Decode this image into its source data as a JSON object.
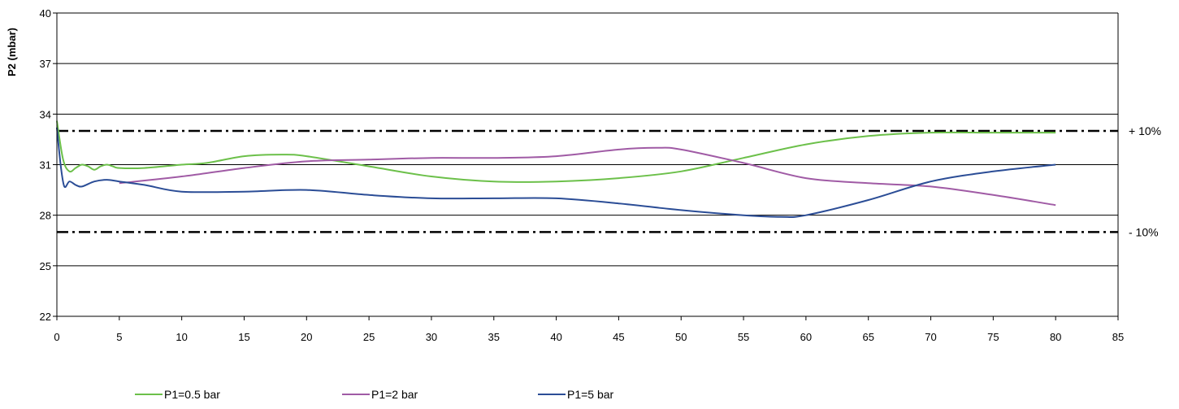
{
  "chart_data": {
    "type": "line",
    "title": "",
    "xlabel": "",
    "ylabel": "P2 (mbar)",
    "xlim": [
      0,
      85
    ],
    "ylim": [
      22,
      40
    ],
    "x_ticks": [
      "0",
      "5",
      "10",
      "15",
      "20",
      "25",
      "30",
      "35",
      "40",
      "45",
      "50",
      "55",
      "60",
      "65",
      "70",
      "75",
      "80",
      "85"
    ],
    "y_ticks": [
      "22",
      "25",
      "28",
      "31",
      "34",
      "37",
      "40"
    ],
    "grid": "horizontal",
    "legend_position": "bottom",
    "reference_lines": [
      {
        "label": "+ 10%",
        "y": 33,
        "style": "dash-dot",
        "color": "#000000"
      },
      {
        "label": "- 10%",
        "y": 27,
        "style": "dash-dot",
        "color": "#000000"
      }
    ],
    "series": [
      {
        "name": "P1=0.5 bar",
        "color": "#6cc04a",
        "x": [
          0,
          0.5,
          1,
          1.5,
          2,
          2.5,
          3,
          3.5,
          4,
          4.5,
          5,
          7,
          10,
          12,
          15,
          18,
          20,
          25,
          30,
          35,
          40,
          45,
          50,
          55,
          60,
          65,
          70,
          75,
          80
        ],
        "y": [
          33.6,
          31.3,
          30.6,
          30.8,
          31.0,
          30.9,
          30.7,
          30.9,
          31.0,
          30.9,
          30.8,
          30.8,
          31.0,
          31.1,
          31.5,
          31.6,
          31.5,
          30.9,
          30.3,
          30.0,
          30.0,
          30.2,
          30.6,
          31.4,
          32.2,
          32.7,
          32.9,
          32.9,
          32.9
        ]
      },
      {
        "name": "P1=2 bar",
        "color": "#a05ba5",
        "x": [
          5,
          10,
          15,
          20,
          25,
          30,
          35,
          40,
          45,
          48,
          50,
          55,
          60,
          65,
          70,
          75,
          80
        ],
        "y": [
          29.9,
          30.3,
          30.8,
          31.2,
          31.3,
          31.4,
          31.4,
          31.5,
          31.9,
          32.0,
          31.9,
          31.1,
          30.2,
          29.9,
          29.7,
          29.2,
          28.6
        ]
      },
      {
        "name": "P1=5 bar",
        "color": "#2b4d96",
        "x": [
          0,
          0.3,
          0.6,
          1,
          1.5,
          2,
          3,
          4,
          5,
          7,
          10,
          15,
          20,
          25,
          30,
          35,
          40,
          45,
          50,
          55,
          58,
          60,
          65,
          70,
          75,
          80
        ],
        "y": [
          33.2,
          31.0,
          29.7,
          30.0,
          29.8,
          29.7,
          30.0,
          30.1,
          30.0,
          29.8,
          29.4,
          29.4,
          29.5,
          29.2,
          29.0,
          29.0,
          29.0,
          28.7,
          28.3,
          28.0,
          27.9,
          28.0,
          28.9,
          30.0,
          30.6,
          31.0
        ]
      }
    ]
  }
}
